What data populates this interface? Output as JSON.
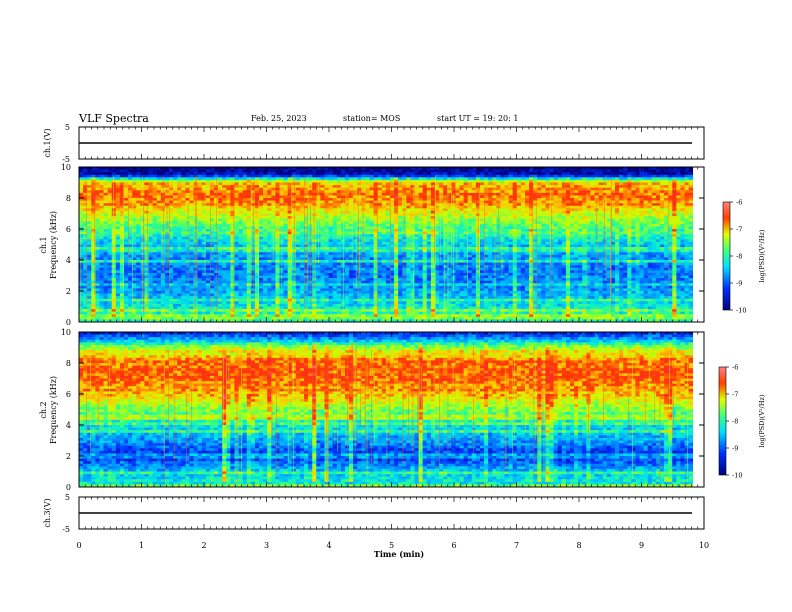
{
  "header": {
    "title": "VLF Spectra",
    "date": "Feb. 25, 2023",
    "station": "station= MOS",
    "start": "start  UT =   19: 20: 1"
  },
  "panels": {
    "ch1_voltage": {
      "label": "ch.1(V)",
      "ymax": "5",
      "ymin": "-5"
    },
    "ch1_spectrum": {
      "label1": "ch.1",
      "label2": "Frequency  (kHz)",
      "colorbar_label": "log(PSD)(V²/Hz)"
    },
    "ch2_spectrum": {
      "label1": "ch.2",
      "label2": "Frequency  (kHz)",
      "colorbar_label": "log(PSD)(V²/Hz)"
    },
    "ch3_voltage": {
      "label": "ch.3(V)",
      "ymax": "5",
      "ymin": "-5"
    }
  },
  "xaxis": {
    "label": "Time  (min)"
  },
  "colors": {
    "low": "#00007f",
    "mid_low": "#0050ff",
    "mid": "#00ffd0",
    "mid_high": "#c8ff00",
    "high": "#ff0000"
  },
  "chart_data": [
    {
      "type": "line",
      "name": "ch.1 voltage",
      "ylabel": "ch.1(V)",
      "xlim": [
        0,
        10
      ],
      "ylim": [
        -5,
        5
      ],
      "yticks": [
        "5",
        "-5"
      ],
      "x": [
        0,
        9.8
      ],
      "y": [
        0,
        0
      ]
    },
    {
      "type": "heatmap",
      "ylabel": "Frequency (kHz)",
      "channel": "ch.1",
      "xlim": [
        0,
        10
      ],
      "ylim": [
        0,
        10
      ],
      "yticks": [
        "0",
        "2",
        "4",
        "6",
        "8",
        "10"
      ],
      "colorbar": {
        "label": "log(PSD)(V²/Hz)",
        "range": [
          -10,
          -6
        ],
        "ticks": [
          "-6",
          "-7",
          "-8",
          "-9",
          "-10"
        ]
      },
      "freq_profile_khz": [
        0,
        1,
        2,
        3,
        4,
        5,
        6,
        7,
        8,
        9,
        9.5,
        10
      ],
      "log_psd_profile": [
        -8.2,
        -8.6,
        -9.0,
        -9.2,
        -9.1,
        -8.8,
        -8.2,
        -7.6,
        -7.0,
        -7.3,
        -9.8,
        -10
      ]
    },
    {
      "type": "heatmap",
      "ylabel": "Frequency (kHz)",
      "channel": "ch.2",
      "xlim": [
        0,
        10
      ],
      "ylim": [
        0,
        10
      ],
      "yticks": [
        "0",
        "2",
        "4",
        "6",
        "8",
        "10"
      ],
      "colorbar": {
        "label": "log(PSD)(V²/Hz)",
        "range": [
          -10,
          -6
        ],
        "ticks": [
          "-6",
          "-7",
          "-8",
          "-9",
          "-10"
        ]
      },
      "freq_profile_khz": [
        0,
        1,
        2,
        3,
        4,
        5,
        6,
        7,
        8,
        9,
        9.5,
        10
      ],
      "log_psd_profile": [
        -8.4,
        -8.8,
        -9.6,
        -9.0,
        -8.6,
        -8.0,
        -7.3,
        -6.9,
        -7.0,
        -7.8,
        -8.8,
        -9.6
      ]
    },
    {
      "type": "line",
      "name": "ch.3 voltage",
      "ylabel": "ch.3(V)",
      "xlim": [
        0,
        10
      ],
      "ylim": [
        -5,
        5
      ],
      "yticks": [
        "5",
        "-5"
      ],
      "x": [
        0,
        9.8
      ],
      "y": [
        0,
        0
      ]
    }
  ],
  "time_ticks": [
    "0",
    "1",
    "2",
    "3",
    "4",
    "5",
    "6",
    "7",
    "8",
    "9",
    "10"
  ]
}
